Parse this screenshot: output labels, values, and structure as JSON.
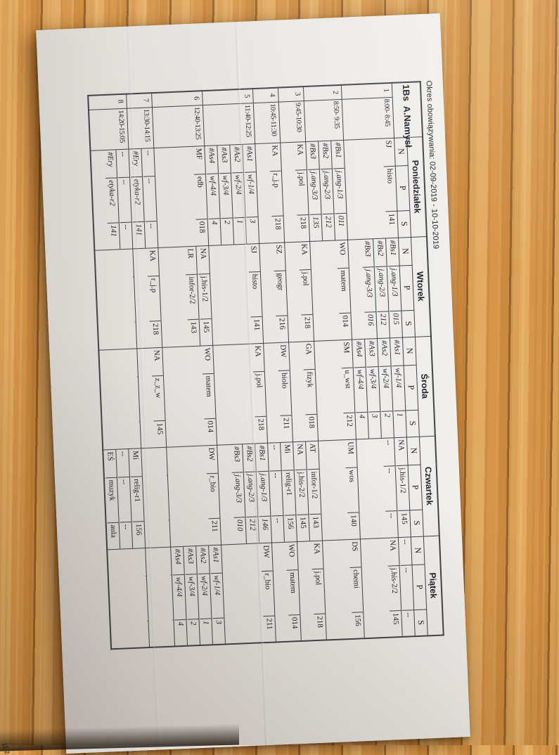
{
  "scene": {
    "corner_note": "11.2",
    "wood_color": "#d79a4c",
    "paper_color": "#eae7e4",
    "line_color": "#43434b",
    "text_color": "#22222a"
  },
  "document": {
    "validity_title": "Okres obowiązywania: 02-09-2019 - 10-10-2019",
    "class_label": "1Bs  A.Namysł"
  },
  "table": {
    "subheaders": [
      "N",
      "P",
      "S"
    ],
    "days": [
      "Poniedziałek",
      "Wtorek",
      "Środa",
      "Czwartek",
      "Piątek"
    ],
    "rows": [
      {
        "nr": "1",
        "time": "8:00- 8:45",
        "days": [
          [
            [
              "SJ",
              "histo",
              "141"
            ]
          ],
          [
            [
              "#Bs1",
              "j.ang-1/3",
              "015"
            ],
            [
              "#Bs2",
              "j.ang-2/3",
              "212"
            ],
            [
              "#Bs3",
              "j.ang-3/3",
              "016"
            ]
          ],
          [
            [
              "#As1",
              "wf-1/4",
              "1"
            ],
            [
              "#As2",
              "wf-2/4",
              "2"
            ],
            [
              "#As3",
              "wf-3/4",
              "3"
            ],
            [
              "#As4",
              "wf-4/4",
              "4"
            ]
          ],
          [
            [
              "NA",
              "j.his-1/2",
              "145"
            ],
            [
              "--",
              "--",
              "--"
            ]
          ],
          [
            [
              "--",
              "--",
              "--"
            ],
            [
              "NA",
              "j.his-2/2",
              "145"
            ]
          ]
        ]
      },
      {
        "nr": "2",
        "time": "8:50- 9:35",
        "days": [
          [
            [
              "#Bs1",
              "j.ang-1/3",
              "011"
            ],
            [
              "#Bs2",
              "j.ang-2/3",
              "212"
            ],
            [
              "#Bs3",
              "j.ang-3/3",
              "135"
            ]
          ],
          [
            [
              "WO",
              "matem",
              "014"
            ]
          ],
          [
            [
              "SM",
              "u_wst",
              "212"
            ]
          ],
          [
            [
              "UM",
              "wos",
              "140"
            ]
          ],
          [
            [
              "DS",
              "chemi",
              "156"
            ]
          ]
        ]
      },
      {
        "nr": "3",
        "time": "9:45-10:30",
        "days": [
          [
            [
              "KA",
              "j.pol",
              "218"
            ]
          ],
          [
            [
              "KA",
              "j.pol",
              "218"
            ]
          ],
          [
            [
              "GA",
              "fizyk",
              "018"
            ]
          ],
          [
            [
              "AT",
              "infor-1/2",
              "143"
            ],
            [
              "NA",
              "j.his-2/2",
              "145"
            ]
          ],
          [
            [
              "KA",
              "j.pol",
              "218"
            ]
          ]
        ]
      },
      {
        "nr": "4",
        "time": "10:45-11:30",
        "days": [
          [
            [
              "KA",
              "r_j.p",
              "218"
            ]
          ],
          [
            [
              "SZ",
              "geogr",
              "216"
            ]
          ],
          [
            [
              "DW",
              "biolo",
              "211"
            ]
          ],
          [
            [
              "Mi",
              "relig-r1",
              "156"
            ],
            [
              "--",
              "--",
              "--"
            ]
          ],
          [
            [
              "WO",
              "matem",
              "014"
            ]
          ]
        ]
      },
      {
        "nr": "5",
        "time": "11:40-12:25",
        "days": [
          [
            [
              "#As1",
              "wf-1/4",
              "3"
            ],
            [
              "#As2",
              "wf-2/4",
              "1"
            ],
            [
              "#As3",
              "wf-3/4",
              "2"
            ],
            [
              "#As4",
              "wf-4/4",
              "4"
            ]
          ],
          [
            [
              "SJ",
              "histo",
              "141"
            ]
          ],
          [
            [
              "KA",
              "j.pol",
              "218"
            ]
          ],
          [
            [
              "#Bs1",
              "j.ang-1/3",
              "146"
            ],
            [
              "#Bs2",
              "j.ang-2/3",
              "212"
            ],
            [
              "#Bs3",
              "j.ang-3/3",
              "010"
            ]
          ],
          [
            [
              "DW",
              "r_bio",
              "211"
            ]
          ]
        ]
      },
      {
        "nr": "6",
        "time": "12:40-13:25",
        "days": [
          [
            [
              "MF",
              "edb",
              "018"
            ]
          ],
          [
            [
              "NA",
              "j.his-1/2",
              "145"
            ],
            [
              "LR",
              "infor-2/2",
              "143"
            ]
          ],
          [
            [
              "WO",
              "matem",
              "014"
            ]
          ],
          [
            [
              "DW",
              "r_bio",
              "211"
            ]
          ],
          [
            [
              "#As1",
              "wf-1/4",
              "3"
            ],
            [
              "#As2",
              "wf-2/4",
              "1"
            ],
            [
              "#As3",
              "wf-3/4",
              "2"
            ],
            [
              "#As4",
              "wf-4/4",
              "4"
            ]
          ]
        ]
      },
      {
        "nr": "7",
        "time": "13:30-14:15",
        "days": [
          [
            [
              "--",
              "--",
              "--"
            ],
            [
              "#Ery",
              "etyka-r2",
              "141"
            ]
          ],
          [
            [
              "KA",
              "r_j.p",
              "218"
            ]
          ],
          [
            [
              "NA",
              "z_z_w",
              "145"
            ]
          ],
          [],
          []
        ]
      },
      {
        "nr": "8",
        "time": "14:20-15:05",
        "days": [
          [
            [
              "--",
              "--",
              "--"
            ],
            [
              "#Ery",
              "etyka-r2",
              "141"
            ]
          ],
          [],
          [],
          [
            [
              "Mi",
              "relig-r1",
              "156"
            ],
            [
              "--",
              "--",
              "--"
            ],
            [
              "EŚ",
              "muzyk",
              "aula"
            ]
          ],
          []
        ]
      }
    ]
  }
}
